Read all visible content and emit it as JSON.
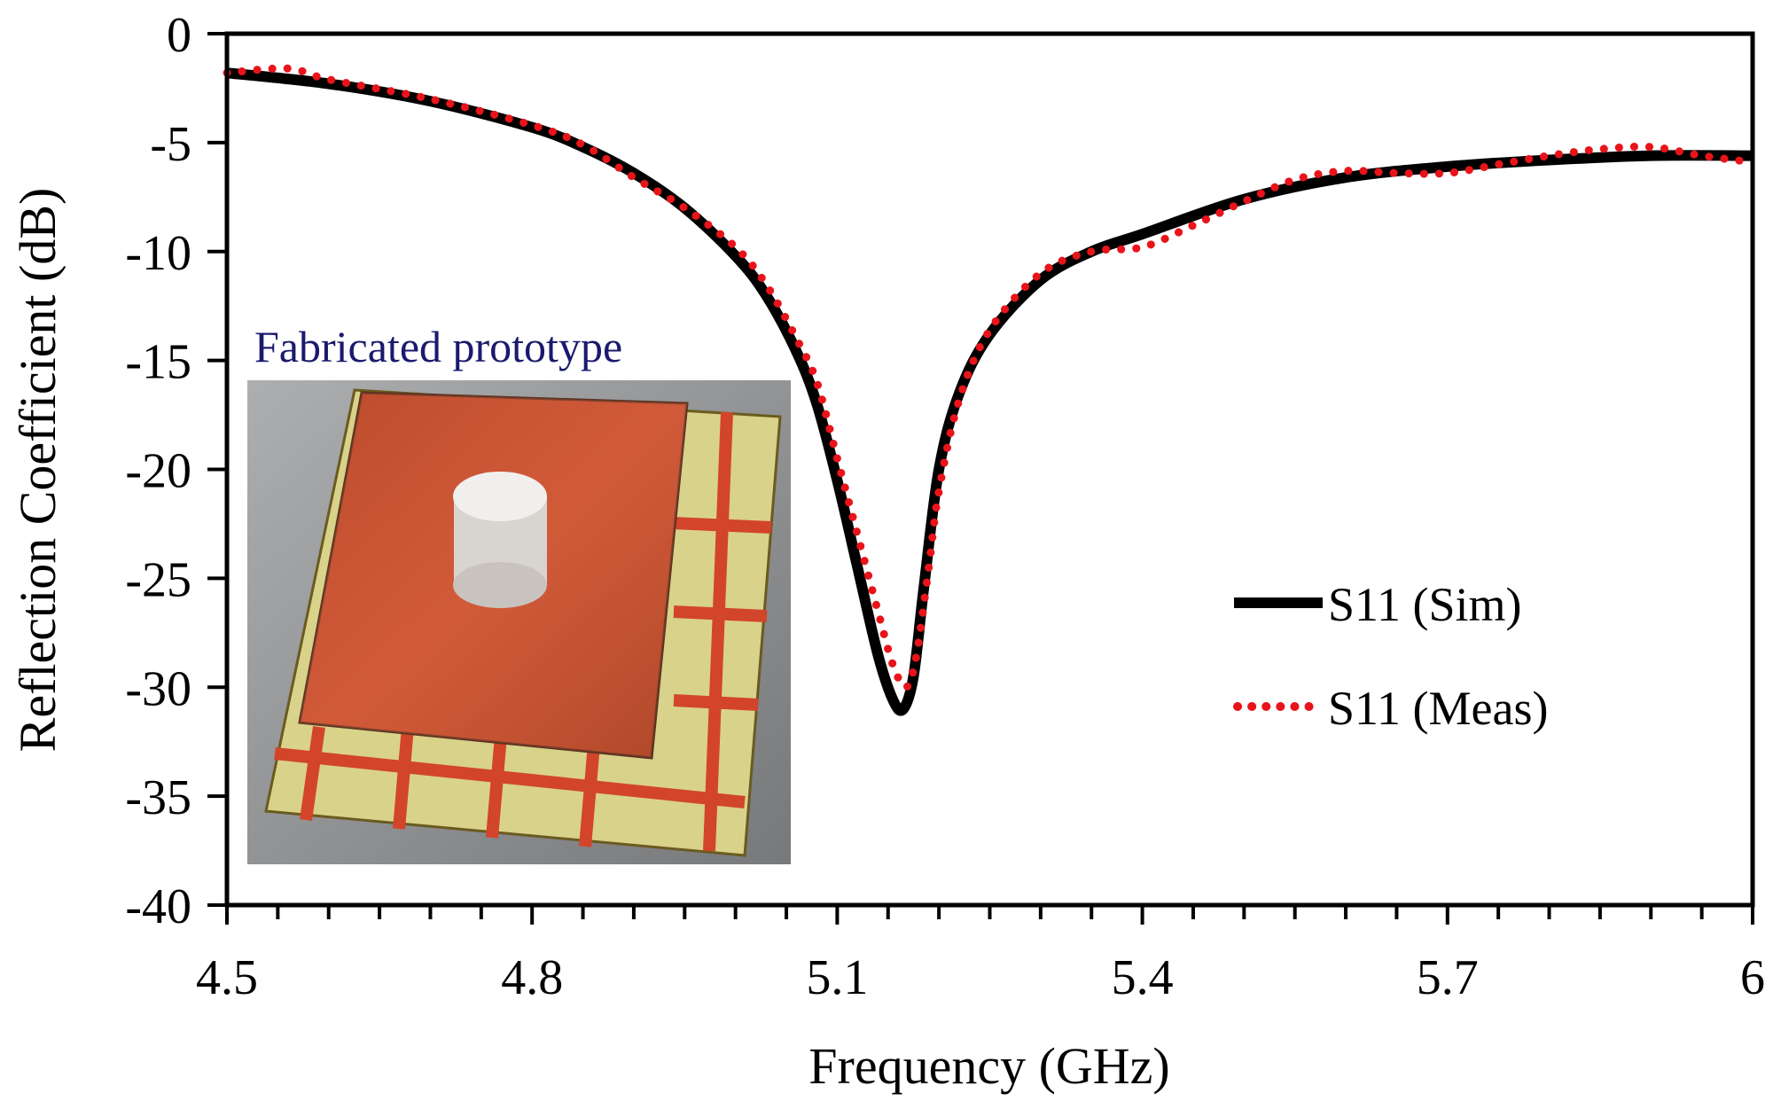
{
  "chart_data": {
    "type": "line",
    "title": "",
    "xlabel": "Frequency (GHz)",
    "ylabel": "Reflection Coefficient (dB)",
    "xlim": [
      4.5,
      6
    ],
    "ylim": [
      -40,
      0
    ],
    "xticks": [
      4.5,
      4.8,
      5.1,
      5.4,
      5.7,
      6
    ],
    "xtick_labels": [
      "4.5",
      "4.8",
      "5.1",
      "5.4",
      "5.7",
      "6"
    ],
    "yticks": [
      0,
      -5,
      -10,
      -15,
      -20,
      -25,
      -30,
      -35,
      -40
    ],
    "ytick_labels": [
      "0",
      "-5",
      "-10",
      "-15",
      "-20",
      "-25",
      "-30",
      "-35",
      "-40"
    ],
    "grid": false,
    "legend_position": "center-right",
    "series": [
      {
        "name": "S11 (Sim)",
        "style": "solid",
        "color": "#000000",
        "x": [
          4.5,
          4.6,
          4.7,
          4.8,
          4.85,
          4.9,
          4.95,
          5.0,
          5.03,
          5.06,
          5.08,
          5.1,
          5.12,
          5.14,
          5.155,
          5.165,
          5.175,
          5.185,
          5.2,
          5.22,
          5.25,
          5.3,
          5.35,
          5.4,
          5.5,
          5.6,
          5.7,
          5.8,
          5.9,
          6.0
        ],
        "y": [
          -1.8,
          -2.3,
          -3.1,
          -4.3,
          -5.2,
          -6.4,
          -8.0,
          -10.2,
          -12.0,
          -14.6,
          -17.0,
          -20.5,
          -24.5,
          -28.5,
          -30.6,
          -31.0,
          -29.5,
          -25.5,
          -20.0,
          -16.5,
          -13.8,
          -11.3,
          -10.0,
          -9.2,
          -7.6,
          -6.6,
          -6.1,
          -5.8,
          -5.6,
          -5.6
        ]
      },
      {
        "name": "S11 (Meas)",
        "style": "dotted",
        "color": "#e8141a",
        "x": [
          4.5,
          4.56,
          4.6,
          4.7,
          4.8,
          4.85,
          4.9,
          4.95,
          5.0,
          5.03,
          5.06,
          5.08,
          5.1,
          5.12,
          5.14,
          5.155,
          5.168,
          5.178,
          5.19,
          5.2,
          5.22,
          5.25,
          5.3,
          5.35,
          5.4,
          5.45,
          5.5,
          5.55,
          5.6,
          5.65,
          5.7,
          5.75,
          5.8,
          5.85,
          5.9,
          5.95,
          6.0
        ],
        "y": [
          -1.8,
          -1.6,
          -2.1,
          -3.0,
          -4.2,
          -5.1,
          -6.6,
          -8.0,
          -9.8,
          -11.5,
          -14.0,
          -16.0,
          -19.5,
          -23.0,
          -26.5,
          -29.0,
          -30.0,
          -28.5,
          -24.5,
          -21.0,
          -16.8,
          -13.6,
          -11.0,
          -10.0,
          -9.8,
          -8.8,
          -7.7,
          -6.7,
          -6.3,
          -6.4,
          -6.4,
          -6.0,
          -5.6,
          -5.3,
          -5.2,
          -5.6,
          -5.9
        ]
      }
    ],
    "annotations": {
      "inset_title": "Fabricated prototype"
    }
  }
}
